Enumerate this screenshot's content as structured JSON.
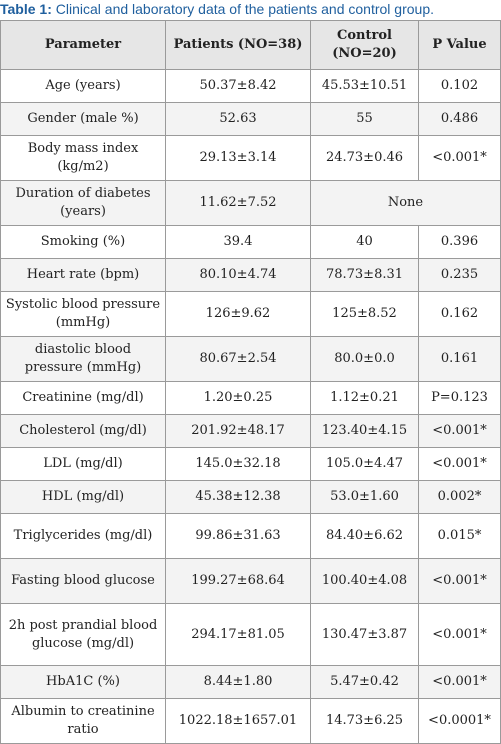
{
  "caption": {
    "label": "Table 1:",
    "text": " Clinical and laboratory data of the patients and control group."
  },
  "headers": {
    "parameter": "Parameter",
    "patients": "Patients (NO=38)",
    "control_line1": "Control",
    "control_line2": "(NO=20)",
    "pvalue": "P Value"
  },
  "rows": [
    {
      "parameter": "Age (years)",
      "patients": "50.37±8.42",
      "control": "45.53±10.51",
      "p": "0.102"
    },
    {
      "parameter": "Gender (male %)",
      "patients": "52.63",
      "control": "55",
      "p": "0.486"
    },
    {
      "parameter": "Body mass index (kg/m2)",
      "patients": "29.13±3.14",
      "control": "24.73±0.46",
      "p": "<0.001*"
    },
    {
      "parameter": "Duration of diabetes (years)",
      "patients": "11.62±7.52",
      "control_p_merged": "None"
    },
    {
      "parameter": "Smoking (%)",
      "patients": "39.4",
      "control": "40",
      "p": "0.396"
    },
    {
      "parameter": "Heart rate (bpm)",
      "patients": "80.10±4.74",
      "control": "78.73±8.31",
      "p": "0.235"
    },
    {
      "parameter": "Systolic blood pressure (mmHg)",
      "patients": "126±9.62",
      "control": "125±8.52",
      "p": "0.162"
    },
    {
      "parameter": "diastolic blood pressure (mmHg)",
      "patients": "80.67±2.54",
      "control": "80.0±0.0",
      "p": "0.161"
    },
    {
      "parameter": "Creatinine (mg/dl)",
      "patients": "1.20±0.25",
      "control": "1.12±0.21",
      "p": "P=0.123"
    },
    {
      "parameter": "Cholesterol (mg/dl)",
      "patients": "201.92±48.17",
      "control": "123.40±4.15",
      "p": "<0.001*"
    },
    {
      "parameter": "LDL (mg/dl)",
      "patients": "145.0±32.18",
      "control": "105.0±4.47",
      "p": "<0.001*"
    },
    {
      "parameter": "HDL (mg/dl)",
      "patients": "45.38±12.38",
      "control": "53.0±1.60",
      "p": "0.002*"
    },
    {
      "parameter": "Triglycerides (mg/dl)",
      "patients": "99.86±31.63",
      "control": "84.40±6.62",
      "p": "0.015*"
    },
    {
      "parameter": "Fasting blood glucose",
      "patients": "199.27±68.64",
      "control": "100.40±4.08",
      "p": "<0.001*"
    },
    {
      "parameter": "2h post prandial blood glucose (mg/dl)",
      "patients": "294.17±81.05",
      "control": "130.47±3.87",
      "p": "<0.001*"
    },
    {
      "parameter": "HbA1C (%)",
      "patients": "8.44±1.80",
      "control": "5.47±0.42",
      "p": "<0.001*"
    },
    {
      "parameter": "Albumin to creatinine ratio",
      "patients": "1022.18±1657.01",
      "control": "14.73±6.25",
      "p": "<0.0001*"
    }
  ]
}
